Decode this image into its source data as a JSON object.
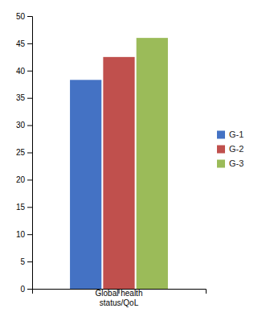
{
  "chart_data": {
    "type": "bar",
    "categories": [
      "Global health\nstatus/QoL"
    ],
    "series": [
      {
        "name": "G-1",
        "color": "#4472C4",
        "values": [
          38.3
        ]
      },
      {
        "name": "G-2",
        "color": "#C0504D",
        "values": [
          42.5
        ]
      },
      {
        "name": "G-3",
        "color": "#9BBB59",
        "values": [
          46.0
        ]
      }
    ],
    "ylim": [
      0,
      50
    ],
    "yticks": [
      0,
      5,
      10,
      15,
      20,
      25,
      30,
      35,
      40,
      45,
      50
    ],
    "grid": false,
    "legend": "right"
  }
}
